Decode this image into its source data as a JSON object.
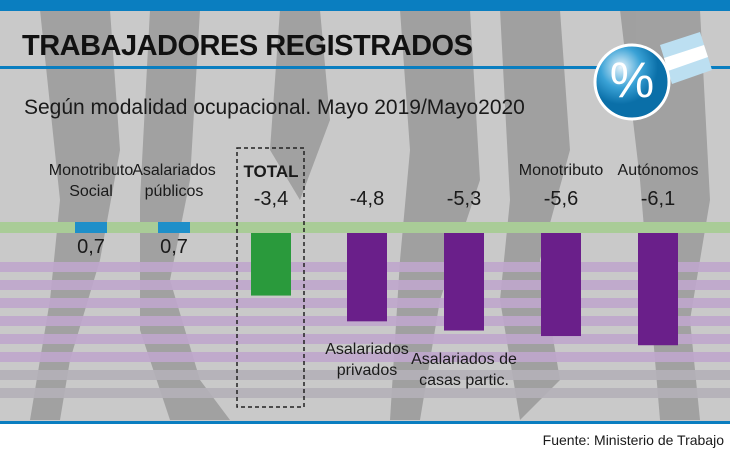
{
  "header": {
    "title": "TRABAJADORES REGISTRADOS",
    "subtitle": "Según modalidad ocupacional. Mayo 2019/Mayo2020",
    "badge_symbol": "%"
  },
  "footer": {
    "source": "Fuente: Ministerio de Trabajo"
  },
  "colors": {
    "accent_blue": "#0a7ec0",
    "positive": "#1e8fc9",
    "total": "#2a9a3c",
    "negative": "#6a1f8a",
    "zero_band": "#a9cc97",
    "stripe": "#bfa6cc"
  },
  "chart_data": {
    "type": "bar",
    "title": "TRABAJADORES REGISTRADOS",
    "subtitle": "Según modalidad ocupacional. Mayo 2019/Mayo2020",
    "unit": "%",
    "categories": [
      "Monotributo Social",
      "Asalariados públicos",
      "TOTAL",
      "Asalariados privados",
      "Asalariados de casas partic.",
      "Monotributo",
      "Autónomos"
    ],
    "label_lines": [
      [
        "Monotributo",
        "Social"
      ],
      [
        "Asalariados",
        "públicos"
      ],
      [
        "TOTAL"
      ],
      [
        "Asalariados",
        "privados"
      ],
      [
        "Asalariados de",
        "casas partic."
      ],
      [
        "Monotributo"
      ],
      [
        "Autónomos"
      ]
    ],
    "values": [
      0.7,
      0.7,
      -3.4,
      -4.8,
      -5.3,
      -5.6,
      -6.1
    ],
    "value_labels": [
      "0,7",
      "0,7",
      "-3,4",
      "-4,8",
      "-5,3",
      "-5,6",
      "-6,1"
    ],
    "highlight": "TOTAL",
    "legend": "none",
    "grid": false
  }
}
